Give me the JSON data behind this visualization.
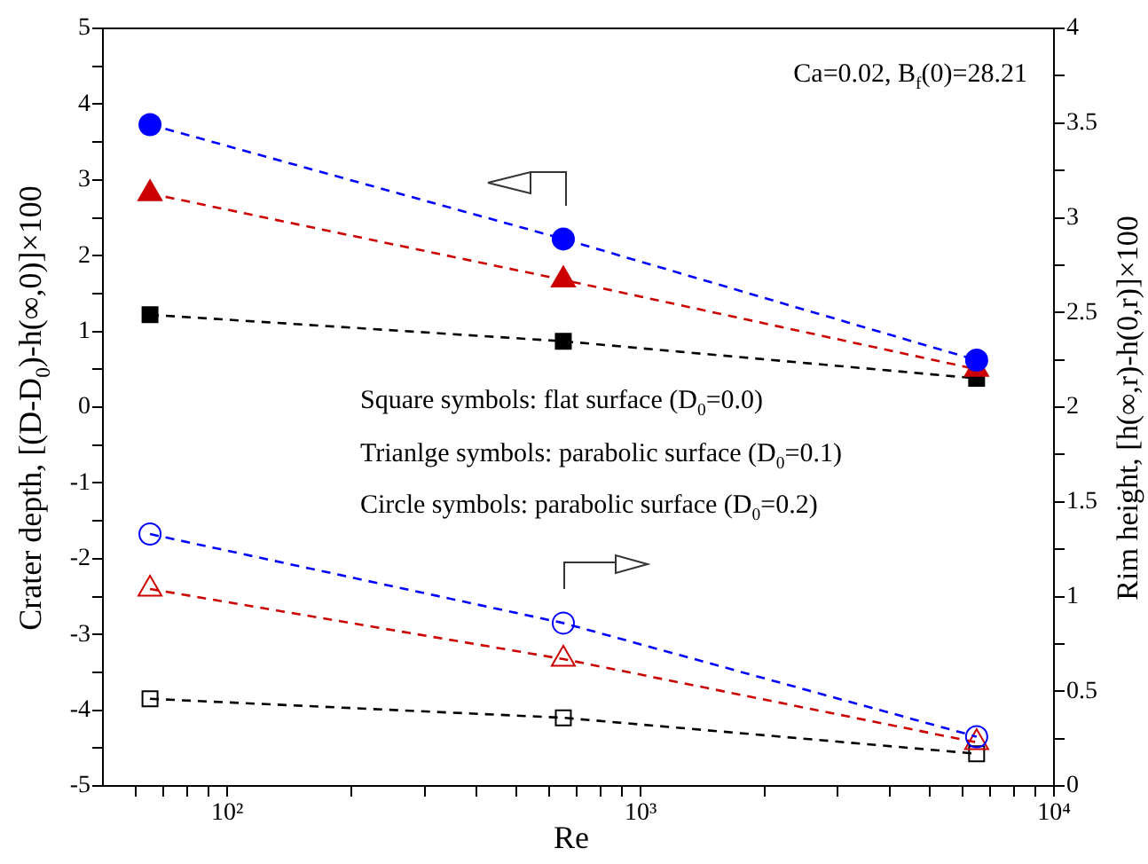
{
  "chart_data": {
    "type": "line",
    "xlabel": "Re",
    "ylabel": "Crater depth, [(D-D$_{0}$)-h(∞,0)]×100",
    "y2label": "Rim height, [h(∞,r)-h(0,r)]×100",
    "annotations": [
      "Ca=0.02, B$_{f}$(0)=28.21",
      "Square symbols: flat surface (D$_{0}$=0.0)",
      "Trianlge symbols: parabolic surface (D$_{0}$=0.1)",
      "Circle symbols: parabolic surface (D$_{0}$=0.2)"
    ],
    "x": [
      65,
      650,
      6500
    ],
    "log": "x",
    "xlim": [
      50,
      10000
    ],
    "xticks": [
      {
        "value": 60,
        "label": null
      },
      {
        "value": 70,
        "label": null
      },
      {
        "value": 80,
        "label": null
      },
      {
        "value": 90,
        "label": null
      },
      {
        "value": 100,
        "label": "10²"
      },
      {
        "value": 200,
        "label": null
      },
      {
        "value": 300,
        "label": null
      },
      {
        "value": 400,
        "label": null
      },
      {
        "value": 500,
        "label": null
      },
      {
        "value": 600,
        "label": null
      },
      {
        "value": 700,
        "label": null
      },
      {
        "value": 800,
        "label": null
      },
      {
        "value": 900,
        "label": null
      },
      {
        "value": 1000,
        "label": "10³"
      },
      {
        "value": 2000,
        "label": null
      },
      {
        "value": 3000,
        "label": null
      },
      {
        "value": 4000,
        "label": null
      },
      {
        "value": 5000,
        "label": null
      },
      {
        "value": 6000,
        "label": null
      },
      {
        "value": 7000,
        "label": null
      },
      {
        "value": 8000,
        "label": null
      },
      {
        "value": 9000,
        "label": null
      },
      {
        "value": 10000,
        "label": "10⁴"
      }
    ],
    "ylim": [
      -5,
      5
    ],
    "yticks": [
      -5,
      {
        "value": -4.5,
        "label": null
      },
      -4,
      {
        "value": -3.5,
        "label": null
      },
      -3,
      {
        "value": -2.5,
        "label": null
      },
      -2,
      {
        "value": -1.5,
        "label": null
      },
      -1,
      {
        "value": -0.5,
        "label": null
      },
      0,
      {
        "value": 0.5,
        "label": null
      },
      1,
      {
        "value": 1.5,
        "label": null
      },
      2,
      {
        "value": 2.5,
        "label": null
      },
      3,
      {
        "value": 3.5,
        "label": null
      },
      4,
      {
        "value": 4.5,
        "label": null
      },
      5
    ],
    "y2lim": [
      0,
      4
    ],
    "y2ticks": [
      0,
      {
        "value": 0.25,
        "label": null
      },
      0.5,
      {
        "value": 0.75,
        "label": null
      },
      1,
      {
        "value": 1.25,
        "label": null
      },
      1.5,
      {
        "value": 1.75,
        "label": null
      },
      2,
      {
        "value": 2.25,
        "label": null
      },
      2.5,
      {
        "value": 2.75,
        "label": null
      },
      3,
      {
        "value": 3.25,
        "label": null
      },
      3.5,
      {
        "value": 3.75,
        "label": null
      },
      4
    ],
    "grid": false,
    "legend": false,
    "line_style": "dashed",
    "series": [
      {
        "color": "#0000ff",
        "marker": "circle",
        "values": [
          3.73,
          2.22,
          0.62
        ]
      },
      {
        "color": "#cc0000",
        "marker": "triangle",
        "values": [
          2.82,
          1.68,
          0.5
        ]
      },
      {
        "color": "#000000",
        "marker": "square",
        "values": [
          1.22,
          0.87,
          0.38
        ]
      },
      {
        "color": "#0000ff",
        "marker": "circle",
        "axis": "y2",
        "values": [
          1.33,
          0.86,
          0.26
        ]
      },
      {
        "color": "#cc0000",
        "marker": "triangle",
        "axis": "y2",
        "values": [
          1.04,
          0.67,
          0.23
        ]
      },
      {
        "color": "#000000",
        "marker": "square",
        "axis": "y2",
        "values": [
          0.46,
          0.36,
          0.17
        ]
      }
    ]
  }
}
